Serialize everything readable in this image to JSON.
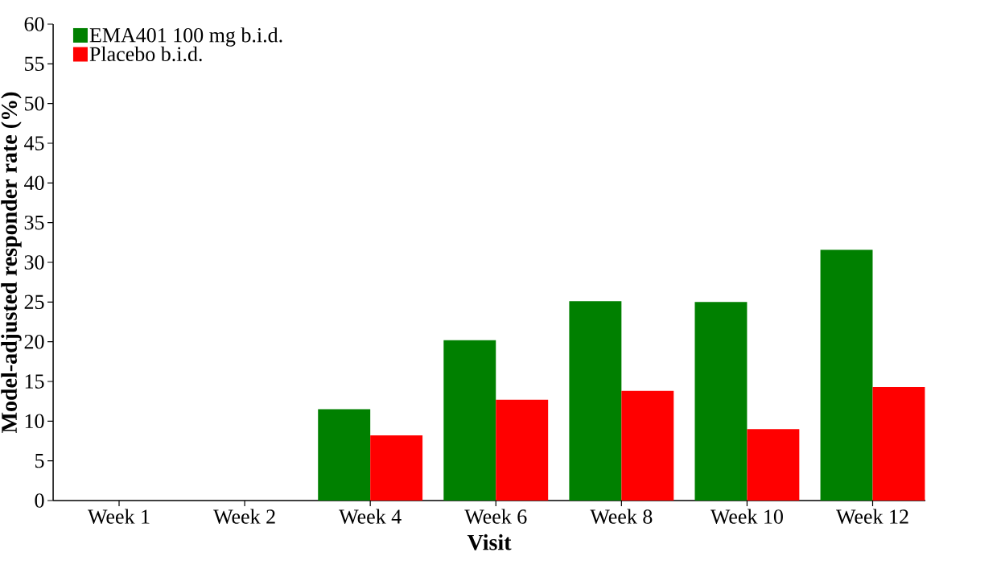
{
  "chart_data": {
    "type": "bar",
    "xlabel": "Visit",
    "ylabel": "Model-adjusted responder rate (%)",
    "categories": [
      "Week 1",
      "Week 2",
      "Week 4",
      "Week 6",
      "Week 8",
      "Week 10",
      "Week 12"
    ],
    "series": [
      {
        "name": "EMA401 100 mg b.i.d.",
        "color": "#008000",
        "values": [
          null,
          null,
          11.5,
          20.2,
          25.1,
          25.0,
          31.6
        ]
      },
      {
        "name": "Placebo b.i.d.",
        "color": "#ff0000",
        "values": [
          null,
          null,
          8.2,
          12.7,
          13.8,
          9.0,
          14.3
        ]
      }
    ],
    "ylim": [
      0,
      60
    ],
    "yticks": [
      0,
      5,
      10,
      15,
      20,
      25,
      30,
      35,
      40,
      45,
      50,
      55,
      60
    ],
    "grid": false,
    "legend": "top left"
  }
}
